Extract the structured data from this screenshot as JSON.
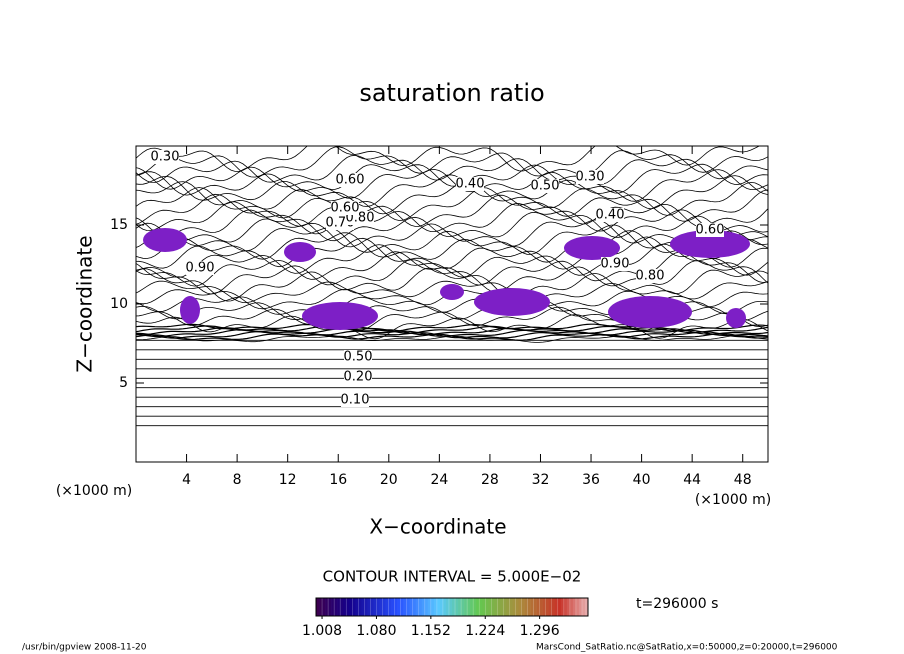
{
  "chart_data": {
    "type": "contour",
    "title": "saturation ratio",
    "x_label": "X−coordinate",
    "y_label": "Z−coordinate",
    "x_unit": "(×1000 m)",
    "y_unit": "(×1000 m)",
    "xlim": [
      0,
      50
    ],
    "xticks": [
      4,
      8,
      12,
      16,
      20,
      24,
      28,
      32,
      36,
      40,
      44,
      48
    ],
    "ylim": [
      0,
      20
    ],
    "yticks": [
      5,
      10,
      15
    ],
    "contour_labels": [
      "0.10",
      "0.20",
      "0.30",
      "0.40",
      "0.50",
      "0.60",
      "0.70",
      "0.80",
      "0.90",
      "0.60",
      "0.30",
      "0.50",
      "0.40",
      "0.60",
      "0.80",
      "0.90"
    ],
    "contour_interval": "CONTOUR INTERVAL = 5.000E−02",
    "time": "t=296000 s",
    "colorbar": {
      "clim": [
        1.0,
        1.36
      ],
      "ticks": [
        {
          "value": 1.008,
          "label": "1.008"
        },
        {
          "value": 1.08,
          "label": "1.080"
        },
        {
          "value": 1.152,
          "label": "1.152"
        },
        {
          "value": 1.224,
          "label": "1.224"
        },
        {
          "value": 1.296,
          "label": "1.296"
        }
      ]
    },
    "fill_color": "#7d1fc6",
    "footer_left": "/usr/bin/gpview   2008-11-20",
    "footer_right": "MarsCond_SatRatio.nc@SatRatio,x=0:50000,z=0:20000,t=296000"
  }
}
